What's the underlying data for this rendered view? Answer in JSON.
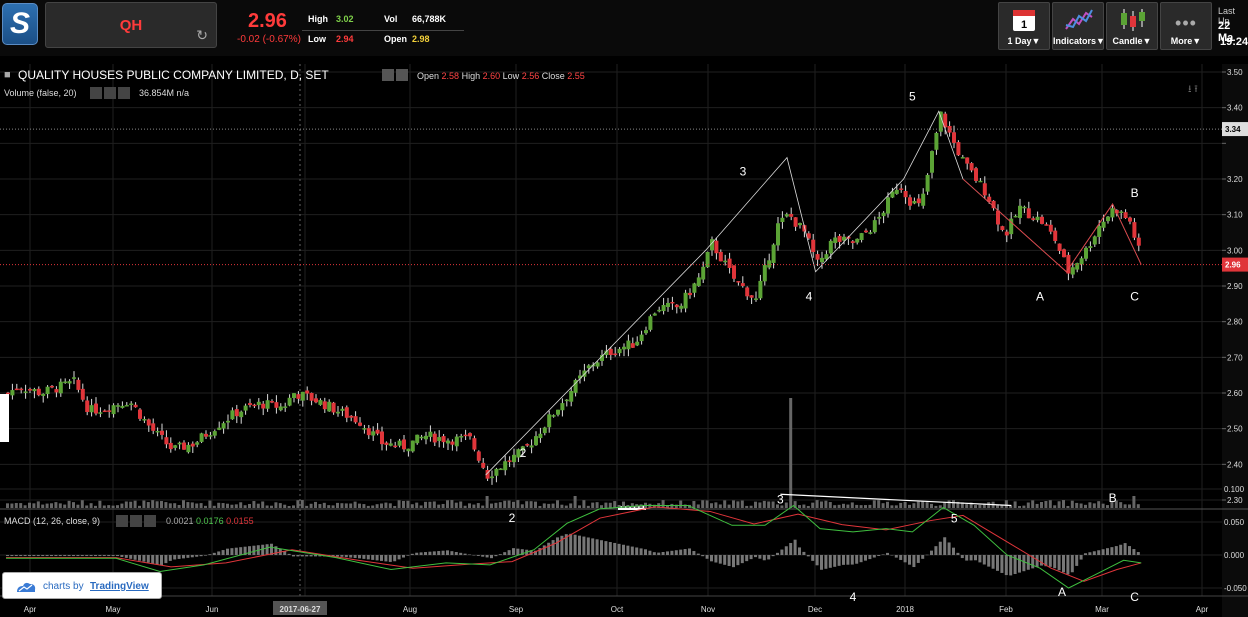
{
  "header": {
    "symbol": "QH",
    "price": "2.96",
    "change": "-0.02 (-0.67%)",
    "high_label": "High",
    "high_value": "3.02",
    "low_label": "Low",
    "low_value": "2.94",
    "vol_label": "Vol",
    "vol_value": "66,788K",
    "open_label": "Open",
    "open_value": "2.98",
    "last_update_label": "Last Up",
    "last_update_date": "22 Ma",
    "last_update_time": "19:24"
  },
  "toolbar": {
    "period_day": "1",
    "period_label": "1 Day▼",
    "indicators_label": "Indicators▼",
    "candle_label": "Candle▼",
    "more_label": "More▼"
  },
  "legend": {
    "title": "QUALITY HOUSES PUBLIC COMPANY LIMITED, D, SET",
    "open_label": "Open",
    "open_value": "2.58",
    "high_label": "High",
    "high_value": "2.60",
    "low_label": "Low",
    "low_value": "2.56",
    "close_label": "Close",
    "close_value": "2.55",
    "volume_label": "Volume (false, 20)",
    "volume_value": "36.854M",
    "volume_na": "n/a",
    "macd_label": "MACD (12, 26, close, 9)",
    "macd_v1": "0.0021",
    "macd_v2": "0.0176",
    "macd_v3": "0.0155"
  },
  "badge": {
    "prefix": "charts by",
    "brand": "TradingView"
  },
  "colors": {
    "up": "#5ba335",
    "down": "#e0353a",
    "accent": "#ff3b3b",
    "grid": "#1f1f1f"
  },
  "chart_data": {
    "type": "candlestick",
    "price_axis_ticks": [
      "3.50",
      "3.40",
      "3.30",
      "3.20",
      "3.10",
      "3.00",
      "2.90",
      "2.80",
      "2.70",
      "2.60",
      "2.50",
      "2.40",
      "2.30"
    ],
    "price_axis_ticks_hidden": [
      "3.30"
    ],
    "ylim": [
      2.3,
      3.5
    ],
    "current_price_tag": "2.96",
    "high_line_tag": "3.34",
    "macd_axis_ticks": [
      "0.100",
      "0.050",
      "0.000",
      "-0.050"
    ],
    "x_labels": [
      "Apr",
      "May",
      "Jun",
      "2017-06-27",
      "Jul",
      "Aug",
      "Sep",
      "Oct",
      "Nov",
      "Dec",
      "2018",
      "Feb",
      "Mar",
      "Apr"
    ],
    "x_labels_hidden": [
      "Jul"
    ],
    "wave_labels": [
      {
        "label": "2",
        "t": 23.5,
        "v": 2.42
      },
      {
        "label": "3",
        "t": 33.5,
        "v": 3.21
      },
      {
        "label": "4",
        "t": 36.5,
        "v": 2.86
      },
      {
        "label": "5",
        "t": 41.2,
        "v": 3.42
      },
      {
        "label": "A",
        "t": 47,
        "v": 2.86
      },
      {
        "label": "B",
        "t": 51.3,
        "v": 3.15
      },
      {
        "label": "C",
        "t": 51.3,
        "v": 2.86
      }
    ],
    "macd_wave_labels": [
      {
        "label": "2",
        "t": 23,
        "v": 0.05
      },
      {
        "label": "3",
        "t": 35.2,
        "v": 0.078
      },
      {
        "label": "4",
        "t": 38.5,
        "v": -0.07
      },
      {
        "label": "5",
        "t": 43.1,
        "v": 0.049
      },
      {
        "label": "A",
        "t": 48,
        "v": -0.062
      },
      {
        "label": "B",
        "t": 50.3,
        "v": 0.08
      },
      {
        "label": "C",
        "t": 51.3,
        "v": -0.07
      }
    ],
    "wave_path": [
      {
        "t": 21.8,
        "v": 2.37
      },
      {
        "t": 31.8,
        "v": 3.0
      },
      {
        "t": 35.5,
        "v": 3.26
      },
      {
        "t": 36.8,
        "v": 2.94
      },
      {
        "t": 40.8,
        "v": 3.2
      },
      {
        "t": 42.4,
        "v": 3.39
      },
      {
        "t": 43.5,
        "v": 3.2
      },
      {
        "t": 48.2,
        "v": 2.94
      },
      {
        "t": 50.3,
        "v": 3.13
      },
      {
        "t": 51.6,
        "v": 2.96
      }
    ],
    "price_path": [
      {
        "t": 0,
        "v": 2.6
      },
      {
        "t": 0.5,
        "v": 2.62
      },
      {
        "t": 1.5,
        "v": 2.6
      },
      {
        "t": 3.0,
        "v": 2.63
      },
      {
        "t": 3.7,
        "v": 2.55
      },
      {
        "t": 4.5,
        "v": 2.56
      },
      {
        "t": 5.5,
        "v": 2.58
      },
      {
        "t": 6.5,
        "v": 2.5
      },
      {
        "t": 7.5,
        "v": 2.44
      },
      {
        "t": 8.5,
        "v": 2.46
      },
      {
        "t": 9.5,
        "v": 2.51
      },
      {
        "t": 10.5,
        "v": 2.55
      },
      {
        "t": 11.5,
        "v": 2.57
      },
      {
        "t": 12.5,
        "v": 2.56
      },
      {
        "t": 13.0,
        "v": 2.6
      },
      {
        "t": 14.0,
        "v": 2.58
      },
      {
        "t": 15.0,
        "v": 2.55
      },
      {
        "t": 16.0,
        "v": 2.52
      },
      {
        "t": 17.0,
        "v": 2.46
      },
      {
        "t": 18.0,
        "v": 2.45
      },
      {
        "t": 19.0,
        "v": 2.48
      },
      {
        "t": 20.0,
        "v": 2.47
      },
      {
        "t": 21.0,
        "v": 2.47
      },
      {
        "t": 21.8,
        "v": 2.37
      },
      {
        "t": 22.5,
        "v": 2.4
      },
      {
        "t": 23.5,
        "v": 2.44
      },
      {
        "t": 24.5,
        "v": 2.52
      },
      {
        "t": 25.5,
        "v": 2.6
      },
      {
        "t": 26.5,
        "v": 2.68
      },
      {
        "t": 27.5,
        "v": 2.72
      },
      {
        "t": 28.5,
        "v": 2.74
      },
      {
        "t": 29.5,
        "v": 2.84
      },
      {
        "t": 30.5,
        "v": 2.84
      },
      {
        "t": 31.5,
        "v": 2.93
      },
      {
        "t": 32.0,
        "v": 3.02
      },
      {
        "t": 33.0,
        "v": 2.92
      },
      {
        "t": 34.0,
        "v": 2.86
      },
      {
        "t": 35.0,
        "v": 3.07
      },
      {
        "t": 35.5,
        "v": 3.1
      },
      {
        "t": 36.2,
        "v": 3.05
      },
      {
        "t": 36.8,
        "v": 2.96
      },
      {
        "t": 37.5,
        "v": 3.03
      },
      {
        "t": 38.5,
        "v": 3.02
      },
      {
        "t": 39.5,
        "v": 3.08
      },
      {
        "t": 40.5,
        "v": 3.19
      },
      {
        "t": 41.0,
        "v": 3.14
      },
      {
        "t": 41.5,
        "v": 3.12
      },
      {
        "t": 42.0,
        "v": 3.27
      },
      {
        "t": 42.4,
        "v": 3.38
      },
      {
        "t": 43.0,
        "v": 3.3
      },
      {
        "t": 43.5,
        "v": 3.24
      },
      {
        "t": 44.5,
        "v": 3.16
      },
      {
        "t": 45.3,
        "v": 3.04
      },
      {
        "t": 46.0,
        "v": 3.12
      },
      {
        "t": 47.0,
        "v": 3.08
      },
      {
        "t": 47.6,
        "v": 3.03
      },
      {
        "t": 48.2,
        "v": 2.94
      },
      {
        "t": 49.0,
        "v": 3.0
      },
      {
        "t": 49.6,
        "v": 3.07
      },
      {
        "t": 50.3,
        "v": 3.12
      },
      {
        "t": 51.0,
        "v": 3.08
      },
      {
        "t": 51.6,
        "v": 2.96
      }
    ],
    "macd_line": [
      {
        "t": 0,
        "v": -0.005
      },
      {
        "t": 5,
        "v": -0.005
      },
      {
        "t": 7,
        "v": -0.025
      },
      {
        "t": 9,
        "v": -0.015
      },
      {
        "t": 12,
        "v": 0.012
      },
      {
        "t": 15,
        "v": -0.004
      },
      {
        "t": 17.5,
        "v": -0.022
      },
      {
        "t": 20,
        "v": -0.012
      },
      {
        "t": 22,
        "v": -0.015
      },
      {
        "t": 24,
        "v": 0.008
      },
      {
        "t": 25.5,
        "v": 0.048
      },
      {
        "t": 27,
        "v": 0.07
      },
      {
        "t": 29,
        "v": 0.075
      },
      {
        "t": 31,
        "v": 0.075
      },
      {
        "t": 33,
        "v": 0.045
      },
      {
        "t": 34.5,
        "v": 0.045
      },
      {
        "t": 35.8,
        "v": 0.075
      },
      {
        "t": 37,
        "v": 0.04
      },
      {
        "t": 38.5,
        "v": 0.035
      },
      {
        "t": 40,
        "v": 0.04
      },
      {
        "t": 41.2,
        "v": 0.035
      },
      {
        "t": 42.6,
        "v": 0.072
      },
      {
        "t": 44,
        "v": 0.045
      },
      {
        "t": 45.5,
        "v": 0.0
      },
      {
        "t": 47,
        "v": -0.02
      },
      {
        "t": 48.3,
        "v": -0.05
      },
      {
        "t": 49.5,
        "v": -0.03
      },
      {
        "t": 50.8,
        "v": -0.008
      },
      {
        "t": 51.6,
        "v": -0.012
      }
    ],
    "signal_line": [
      {
        "t": 0,
        "v": -0.004
      },
      {
        "t": 5,
        "v": -0.004
      },
      {
        "t": 7.5,
        "v": -0.018
      },
      {
        "t": 10,
        "v": -0.012
      },
      {
        "t": 13,
        "v": 0.008
      },
      {
        "t": 16,
        "v": -0.008
      },
      {
        "t": 18.5,
        "v": -0.02
      },
      {
        "t": 21,
        "v": -0.014
      },
      {
        "t": 23,
        "v": -0.01
      },
      {
        "t": 25,
        "v": 0.018
      },
      {
        "t": 27,
        "v": 0.056
      },
      {
        "t": 29.5,
        "v": 0.073
      },
      {
        "t": 32,
        "v": 0.066
      },
      {
        "t": 34,
        "v": 0.047
      },
      {
        "t": 36,
        "v": 0.062
      },
      {
        "t": 38,
        "v": 0.046
      },
      {
        "t": 40,
        "v": 0.038
      },
      {
        "t": 42,
        "v": 0.052
      },
      {
        "t": 43.5,
        "v": 0.06
      },
      {
        "t": 45.5,
        "v": 0.02
      },
      {
        "t": 47.5,
        "v": -0.02
      },
      {
        "t": 49,
        "v": -0.04
      },
      {
        "t": 50.5,
        "v": -0.022
      },
      {
        "t": 51.6,
        "v": -0.012
      }
    ],
    "macd_trend_line": [
      {
        "t": 35.2,
        "v": 0.092
      },
      {
        "t": 45.7,
        "v": 0.075
      }
    ]
  }
}
